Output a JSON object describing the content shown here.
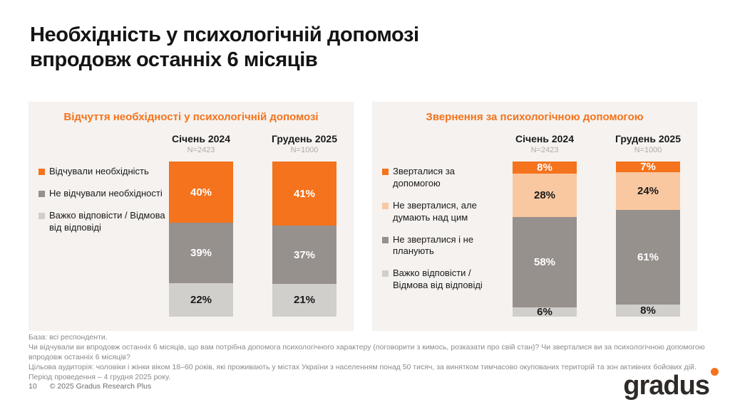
{
  "title": {
    "line1": "Необхідність у психологічній допомозі",
    "line2": "впродовж останніх 6 місяців"
  },
  "colors": {
    "orange": "#F4731C",
    "peach": "#FAC8A0",
    "dark_gray": "#97918E",
    "light_gray": "#D1CFCC",
    "panel_bg": "#F5F2EF",
    "accent_text": "#F4731C"
  },
  "chart_data": [
    {
      "type": "bar",
      "stacked": true,
      "panel_title": "Відчуття необхідності у психологічній допомозі",
      "categories": [
        "Січень 2024",
        "Грудень 2025"
      ],
      "bases": [
        "N=2423",
        "N=1000"
      ],
      "legend_position": "left",
      "series": [
        {
          "name": "Відчували необхідність",
          "color_key": "orange",
          "label_color": "#ffffff",
          "values": [
            40,
            41
          ]
        },
        {
          "name": "Не відчували необхідності",
          "color_key": "dark_gray",
          "label_color": "#ffffff",
          "values": [
            39,
            37
          ]
        },
        {
          "name": "Важко відповісти / Відмова від відповіді",
          "color_key": "light_gray",
          "label_color": "#1a1a1a",
          "values": [
            22,
            21
          ]
        }
      ]
    },
    {
      "type": "bar",
      "stacked": true,
      "panel_title": "Звернення за психологічною допомогою",
      "categories": [
        "Січень 2024",
        "Грудень 2025"
      ],
      "bases": [
        "N=2423",
        "N=1000"
      ],
      "legend_position": "left",
      "series": [
        {
          "name": "Зверталися за допомогою",
          "color_key": "orange",
          "label_color": "#ffffff",
          "values": [
            8,
            7
          ]
        },
        {
          "name": "Не зверталися, але думають над цим",
          "color_key": "peach",
          "label_color": "#1a1a1a",
          "values": [
            28,
            24
          ]
        },
        {
          "name": "Не зверталися і не планують",
          "color_key": "dark_gray",
          "label_color": "#ffffff",
          "values": [
            58,
            61
          ]
        },
        {
          "name": "Важко відповісти / Відмова від відповіді",
          "color_key": "light_gray",
          "label_color": "#1a1a1a",
          "values": [
            6,
            8
          ]
        }
      ]
    }
  ],
  "footer": {
    "base": "База: всі респонденти.",
    "question": "Чи відчували ви впродовж останніх 6 місяців, що вам потрібна допомога психологічного характеру (поговорити з кимось, розказати про свій стан)? Чи зверталися ви за психологічною допомогою впродовж останніх 6 місяців?",
    "audience": "Цільова аудиторія: чоловіки і жінки віком 18–60 років, які проживають у містах України з населенням понад 50 тисяч, за винятком тимчасово окупованих територій та зон активних бойових дій. Період проведення – 4 грудня 2025 року.",
    "page_number": "10",
    "copyright": "© 2025 Gradus Research Plus"
  },
  "logo": {
    "text": "gradus"
  }
}
